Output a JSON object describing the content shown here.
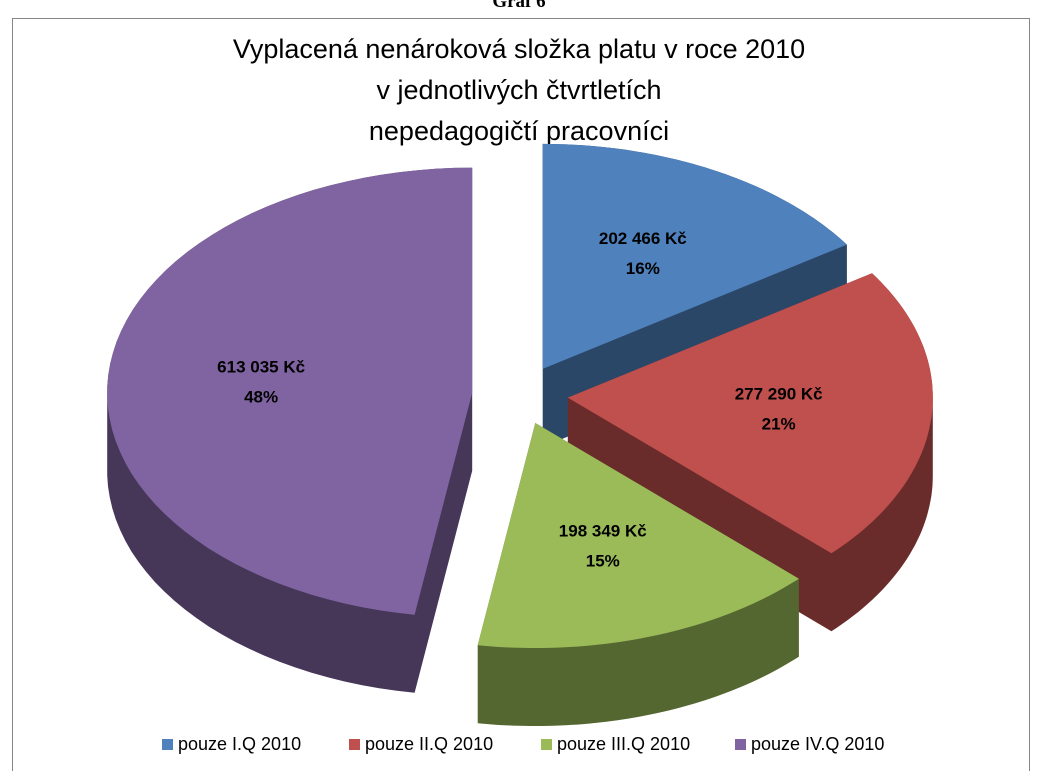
{
  "header": "Graf 6",
  "chart_data": {
    "type": "pie",
    "title": [
      "Vyplacená nenároková složka platu v roce 2010",
      "v jednotlivých čtvrtletích",
      "nepedagogičtí pracovníci"
    ],
    "categories": [
      "pouze I.Q 2010",
      "pouze II.Q 2010",
      "pouze III.Q 2010",
      "pouze IV.Q 2010"
    ],
    "values": [
      202466,
      277290,
      198349,
      613035
    ],
    "value_labels": [
      "202 466 Kč",
      "277 290 Kč",
      "198 349 Kč",
      "613 035 Kč"
    ],
    "percents": [
      16,
      21,
      15,
      48
    ],
    "percent_labels": [
      "16%",
      "21%",
      "15%",
      "48%"
    ],
    "colors": [
      "#4f81bd",
      "#c0504d",
      "#9bbb59",
      "#8064a2"
    ],
    "legend": "bottom",
    "exploded": true,
    "three_d": true
  }
}
